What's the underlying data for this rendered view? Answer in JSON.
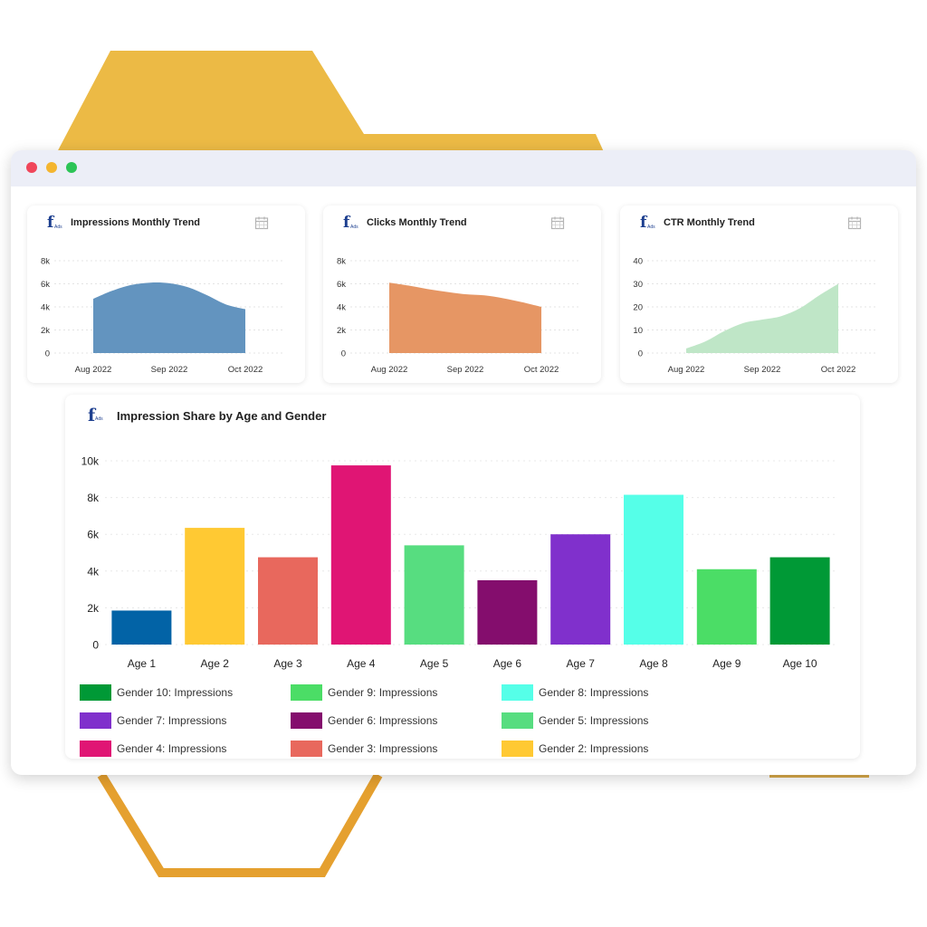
{
  "window": {
    "controls": [
      "close",
      "minimize",
      "maximize"
    ]
  },
  "trend_cards": [
    {
      "title": "Impressions Monthly Trend",
      "logo_text": "f",
      "logo_sub": "Ads",
      "icon": "calendar-icon",
      "fill_color": "#6394bf"
    },
    {
      "title": "Clicks Monthly Trend",
      "logo_text": "f",
      "logo_sub": "Ads",
      "icon": "calendar-icon",
      "fill_color": "#e69664"
    },
    {
      "title": "CTR Monthly Trend",
      "logo_text": "f",
      "logo_sub": "Ads",
      "icon": "calendar-icon",
      "fill_color": "#bfe6c7"
    }
  ],
  "bar_card": {
    "title": "Impression Share by Age and Gender",
    "logo_text": "f",
    "logo_sub": "Ads"
  },
  "chart_data": [
    {
      "type": "area",
      "title": "Impressions Monthly Trend",
      "x": [
        "Aug 2022",
        "Sep 2022",
        "Oct 2022"
      ],
      "x_samples": [
        0,
        0.25,
        0.5,
        0.75,
        1,
        1.25,
        1.5,
        1.75,
        2
      ],
      "y_samples": [
        4700,
        5400,
        5900,
        6100,
        6050,
        5700,
        5000,
        4200,
        3800
      ],
      "ylim": [
        0,
        8000
      ],
      "yticks": [
        0,
        2000,
        4000,
        6000,
        8000
      ],
      "ytick_labels": [
        "0",
        "2k",
        "4k",
        "6k",
        "8k"
      ],
      "grid": true
    },
    {
      "type": "area",
      "title": "Clicks Monthly Trend",
      "x": [
        "Aug 2022",
        "Sep 2022",
        "Oct 2022"
      ],
      "x_samples": [
        0,
        0.25,
        0.5,
        0.75,
        1,
        1.25,
        1.5,
        1.75,
        2
      ],
      "y_samples": [
        6100,
        5850,
        5550,
        5300,
        5100,
        5000,
        4750,
        4400,
        4000
      ],
      "ylim": [
        0,
        8000
      ],
      "yticks": [
        0,
        2000,
        4000,
        6000,
        8000
      ],
      "ytick_labels": [
        "0",
        "2k",
        "4k",
        "6k",
        "8k"
      ],
      "grid": true
    },
    {
      "type": "area",
      "title": "CTR Monthly Trend",
      "x": [
        "Aug 2022",
        "Sep 2022",
        "Oct 2022"
      ],
      "x_samples": [
        0,
        0.25,
        0.5,
        0.75,
        1,
        1.25,
        1.5,
        1.75,
        2
      ],
      "y_samples": [
        2,
        5,
        9.5,
        13,
        14.5,
        16,
        19.5,
        25,
        30
      ],
      "ylim": [
        0,
        40
      ],
      "yticks": [
        0,
        10,
        20,
        30,
        40
      ],
      "ytick_labels": [
        "0",
        "10",
        "20",
        "30",
        "40"
      ],
      "grid": true
    },
    {
      "type": "bar",
      "title": "Impression Share by Age and Gender",
      "categories": [
        "Age 1",
        "Age 2",
        "Age 3",
        "Age 4",
        "Age 5",
        "Age 6",
        "Age 7",
        "Age 8",
        "Age 9",
        "Age 10"
      ],
      "values": [
        1850,
        6350,
        4750,
        9750,
        5400,
        3500,
        6000,
        8150,
        4100,
        4750
      ],
      "colors": [
        "#0263a6",
        "#ffc933",
        "#e8685d",
        "#e01574",
        "#57dd80",
        "#840d6d",
        "#8030cc",
        "#55ffe8",
        "#4bdd66",
        "#009936"
      ],
      "ylim": [
        0,
        10000
      ],
      "yticks": [
        0,
        2000,
        4000,
        6000,
        8000,
        10000
      ],
      "ytick_labels": [
        "0",
        "2k",
        "4k",
        "6k",
        "8k",
        "10k"
      ],
      "grid": true,
      "legend": [
        {
          "label": "Gender 10: Impressions",
          "color": "#009936"
        },
        {
          "label": "Gender 9: Impressions",
          "color": "#4bdd66"
        },
        {
          "label": "Gender 8: Impressions",
          "color": "#55ffe8"
        },
        {
          "label": "Gender 7: Impressions",
          "color": "#8030cc"
        },
        {
          "label": "Gender 6: Impressions",
          "color": "#840d6d"
        },
        {
          "label": "Gender 5: Impressions",
          "color": "#57dd80"
        },
        {
          "label": "Gender 4: Impressions",
          "color": "#e01574"
        },
        {
          "label": "Gender 3: Impressions",
          "color": "#e8685d"
        },
        {
          "label": "Gender 2: Impressions",
          "color": "#ffc933"
        }
      ],
      "legend_position": "bottom"
    }
  ]
}
